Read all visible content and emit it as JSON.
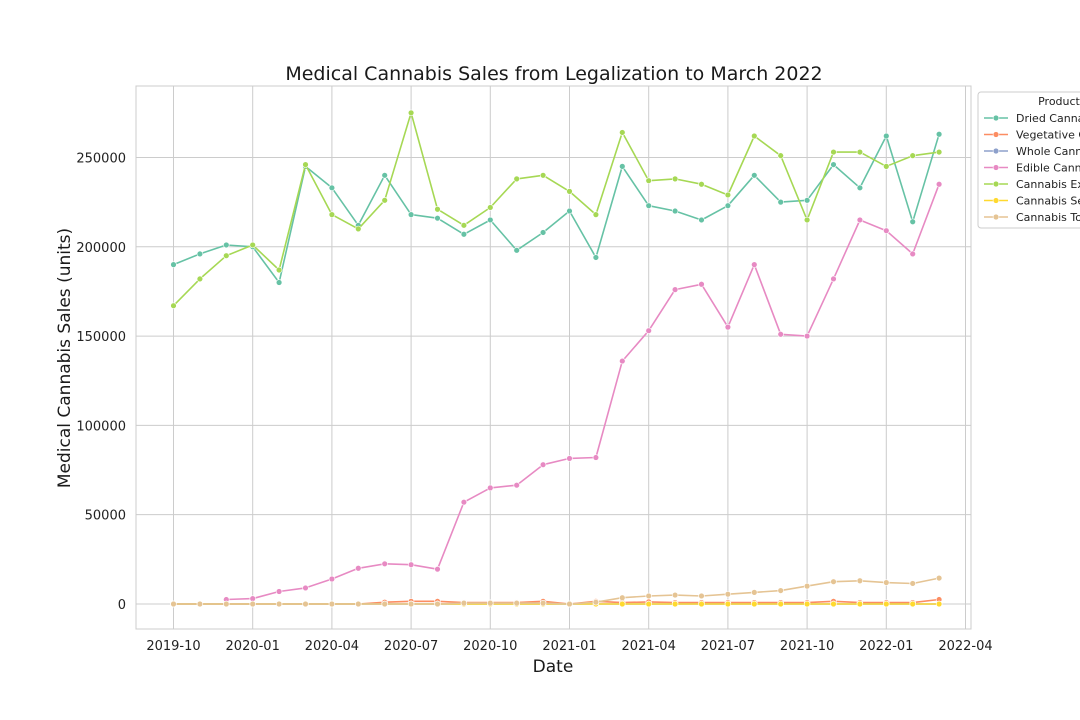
{
  "chart_data": {
    "type": "line",
    "title": "Medical Cannabis Sales from Legalization to March 2022",
    "xlabel": "Date",
    "ylabel": "Medical Cannabis Sales (units)",
    "legend_title": "Product",
    "legend_placement": "outside-top-right",
    "grid": true,
    "x_start": "2019-10",
    "x": [
      "2019-10",
      "2019-11",
      "2019-12",
      "2020-01",
      "2020-02",
      "2020-03",
      "2020-04",
      "2020-05",
      "2020-06",
      "2020-07",
      "2020-08",
      "2020-09",
      "2020-10",
      "2020-11",
      "2020-12",
      "2021-01",
      "2021-02",
      "2021-03",
      "2021-04",
      "2021-05",
      "2021-06",
      "2021-07",
      "2021-08",
      "2021-09",
      "2021-10",
      "2021-11",
      "2021-12",
      "2022-01",
      "2022-02",
      "2022-03"
    ],
    "x_ticks": [
      "2019-10",
      "2020-01",
      "2020-04",
      "2020-07",
      "2020-10",
      "2021-01",
      "2021-04",
      "2021-07",
      "2021-10",
      "2022-01",
      "2022-04"
    ],
    "ylim": [
      -14000,
      290000
    ],
    "y_ticks": [
      0,
      50000,
      100000,
      150000,
      200000,
      250000
    ],
    "series": [
      {
        "name": "Dried Cannabis",
        "color": "#66c2a5",
        "values": [
          190000,
          196000,
          201000,
          200000,
          180000,
          245000,
          233000,
          212000,
          240000,
          218000,
          216000,
          207000,
          215000,
          198000,
          208000,
          220000,
          194000,
          245000,
          223000,
          220000,
          215000,
          223000,
          240000,
          225000,
          226000,
          246000,
          233000,
          262000,
          214000,
          263000
        ]
      },
      {
        "name": "Vegetative Cannabis Plants and Seedlings",
        "color": "#fc8d62",
        "values": [
          0,
          0,
          0,
          0,
          0,
          0,
          0,
          0,
          1000,
          1500,
          1500,
          800,
          800,
          800,
          1500,
          0,
          1500,
          800,
          1200,
          800,
          800,
          800,
          800,
          800,
          800,
          1500,
          800,
          800,
          800,
          2500
        ]
      },
      {
        "name": "Whole Cannabis Plants",
        "color": "#8da0cb",
        "values": [
          0,
          0,
          0,
          0,
          0,
          0,
          0,
          0,
          0,
          0,
          0,
          0,
          0,
          0,
          0,
          0,
          0,
          0,
          0,
          0,
          0,
          0,
          0,
          0,
          0,
          0,
          0,
          0,
          0,
          0
        ]
      },
      {
        "name": "Edible Cannabis",
        "color": "#e78ac3",
        "values": [
          null,
          null,
          2500,
          3000,
          7000,
          9000,
          14000,
          20000,
          22500,
          22000,
          19500,
          57000,
          65000,
          66500,
          78000,
          81500,
          82000,
          136000,
          153000,
          176000,
          179000,
          155000,
          190000,
          151000,
          150000,
          182000,
          215000,
          209000,
          196000,
          235000
        ]
      },
      {
        "name": "Cannabis Extracts",
        "color": "#a6d854",
        "values": [
          167000,
          182000,
          195000,
          201000,
          187000,
          246000,
          218000,
          210000,
          226000,
          275000,
          221000,
          212000,
          222000,
          238000,
          240000,
          231000,
          218000,
          264000,
          237000,
          238000,
          235000,
          229000,
          262000,
          251000,
          215000,
          253000,
          253000,
          245000,
          251000,
          253000
        ]
      },
      {
        "name": "Cannabis Seeds",
        "color": "#ffd92f",
        "values": [
          0,
          0,
          0,
          0,
          0,
          0,
          0,
          0,
          0,
          0,
          0,
          0,
          0,
          0,
          0,
          0,
          0,
          0,
          0,
          0,
          0,
          0,
          0,
          0,
          0,
          0,
          0,
          0,
          0,
          0
        ]
      },
      {
        "name": "Cannabis Topicals",
        "color": "#e5c494",
        "values": [
          0,
          0,
          0,
          0,
          0,
          0,
          0,
          0,
          0,
          0,
          0,
          500,
          500,
          500,
          500,
          0,
          1000,
          3500,
          4500,
          5000,
          4500,
          5500,
          6500,
          7500,
          10000,
          12500,
          13000,
          12000,
          11500,
          14500
        ]
      }
    ]
  }
}
